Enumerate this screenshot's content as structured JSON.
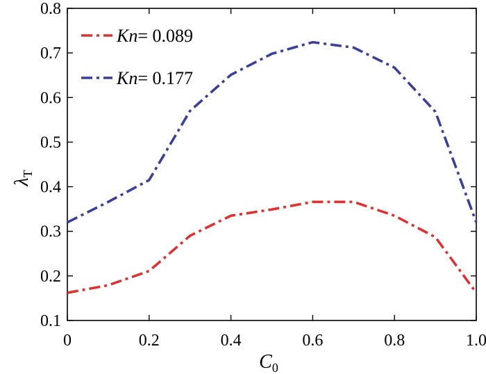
{
  "chart_data": {
    "type": "line",
    "xlabel": {
      "main": "C",
      "sub": "0"
    },
    "ylabel": {
      "main": "λ",
      "sub": "T"
    },
    "xlim": [
      0,
      1.0
    ],
    "ylim": [
      0.1,
      0.8
    ],
    "xticks": [
      "0",
      "0.2",
      "0.4",
      "0.6",
      "0.8",
      "1.0"
    ],
    "yticks": [
      "0.1",
      "0.2",
      "0.3",
      "0.4",
      "0.5",
      "0.6",
      "0.7",
      "0.8"
    ],
    "grid": false,
    "legend_position": "top-left",
    "x": [
      0,
      0.1,
      0.2,
      0.3,
      0.4,
      0.5,
      0.6,
      0.7,
      0.8,
      0.9,
      1.0
    ],
    "series": [
      {
        "name": "Kn = 0.089",
        "name_var": "Kn",
        "name_value": "= 0.089",
        "color": "#e03030",
        "values": [
          0.162,
          0.179,
          0.211,
          0.29,
          0.335,
          0.349,
          0.366,
          0.366,
          0.335,
          0.287,
          0.162
        ]
      },
      {
        "name": "Kn = 0.177",
        "name_var": "Kn",
        "name_value": "= 0.177",
        "color": "#3a3f9a",
        "values": [
          0.32,
          0.366,
          0.415,
          0.57,
          0.651,
          0.698,
          0.724,
          0.712,
          0.667,
          0.568,
          0.32
        ]
      }
    ]
  }
}
